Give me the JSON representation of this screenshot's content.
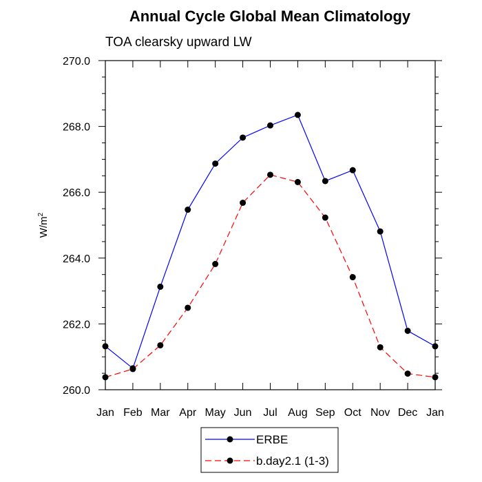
{
  "chart_data": {
    "type": "line",
    "title": "Annual Cycle Global Mean Climatology",
    "subtitle": "TOA clearsky upward LW",
    "xlabel": "",
    "ylabel": "W/m",
    "ylabel_superscript": "2",
    "categories": [
      "Jan",
      "Feb",
      "Mar",
      "Apr",
      "May",
      "Jun",
      "Jul",
      "Aug",
      "Sep",
      "Oct",
      "Nov",
      "Dec",
      "Jan"
    ],
    "yticks": [
      "260.0",
      "262.0",
      "264.0",
      "266.0",
      "268.0",
      "270.0"
    ],
    "ylim": [
      260.0,
      270.0
    ],
    "grid": false,
    "legend_position": "bottom-center",
    "series": [
      {
        "name": "ERBE",
        "color": "#0000ff",
        "dash": "solid",
        "values": [
          261.32,
          260.65,
          263.13,
          265.47,
          266.87,
          267.66,
          268.03,
          268.35,
          266.34,
          266.67,
          264.81,
          261.79,
          261.32
        ]
      },
      {
        "name": "b.day2.1 (1-3)",
        "color": "#ff0000",
        "dash": "dashed",
        "values": [
          260.38,
          260.63,
          261.35,
          262.49,
          263.82,
          265.68,
          266.53,
          266.31,
          265.23,
          263.42,
          261.29,
          260.49,
          260.38
        ]
      }
    ]
  }
}
